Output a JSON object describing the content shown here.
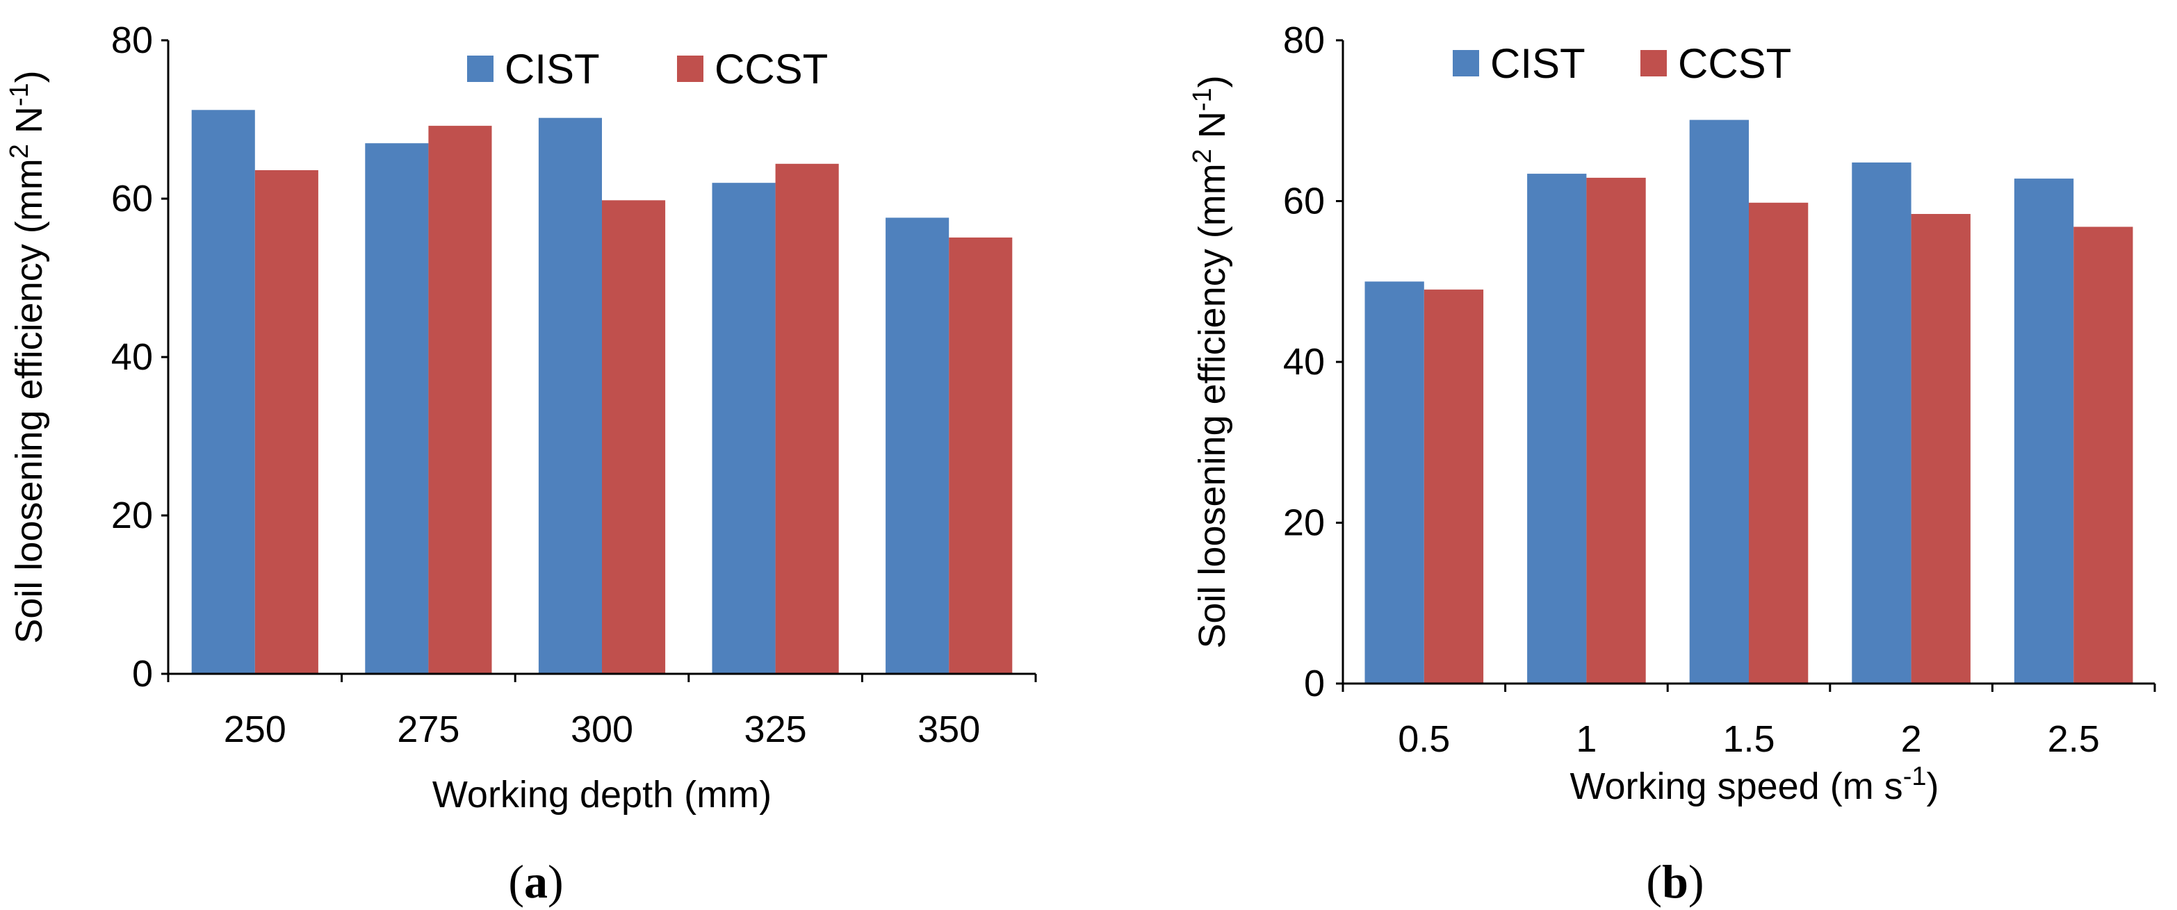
{
  "chart_data": [
    {
      "type": "bar",
      "panel": "a",
      "panel_label": {
        "open": "(",
        "letter": "a",
        "close": ")"
      },
      "categories": [
        "250",
        "275",
        "300",
        "325",
        "350"
      ],
      "series": [
        {
          "name": "CIST",
          "color": "#4f81bd",
          "values": [
            71.2,
            67.0,
            70.2,
            62.0,
            57.6
          ]
        },
        {
          "name": "CCST",
          "color": "#c0504d",
          "values": [
            63.6,
            69.2,
            59.8,
            64.4,
            55.1
          ]
        }
      ],
      "xlabel": "Working depth (mm)",
      "ylabel": {
        "prefix": "Soil loosening efficiency (mm",
        "sup1": "2",
        "middle": " N",
        "sup2": "-1",
        "suffix": ")"
      },
      "ylim": [
        0,
        80
      ],
      "yticks": [
        "0",
        "20",
        "40",
        "60",
        "80"
      ],
      "legend_position": "top-center",
      "grid": false
    },
    {
      "type": "bar",
      "panel": "b",
      "panel_label": {
        "open": "(",
        "letter": "b",
        "close": ")"
      },
      "categories": [
        "0.5",
        "1",
        "1.5",
        "2",
        "2.5"
      ],
      "series": [
        {
          "name": "CIST",
          "color": "#4f81bd",
          "values": [
            50.0,
            63.4,
            70.1,
            64.8,
            62.8
          ]
        },
        {
          "name": "CCST",
          "color": "#c0504d",
          "values": [
            49.0,
            62.9,
            59.8,
            58.4,
            56.8
          ]
        }
      ],
      "xlabel": {
        "prefix": "Working speed (m s",
        "sup": "-1",
        "suffix": ")"
      },
      "ylabel": {
        "prefix": "Soil loosening efficiency (mm",
        "sup1": "2",
        "middle": " N",
        "sup2": "-1",
        "suffix": ")"
      },
      "ylim": [
        0,
        80
      ],
      "yticks": [
        "0",
        "20",
        "40",
        "60",
        "80"
      ],
      "legend_position": "top-left",
      "grid": false
    }
  ]
}
